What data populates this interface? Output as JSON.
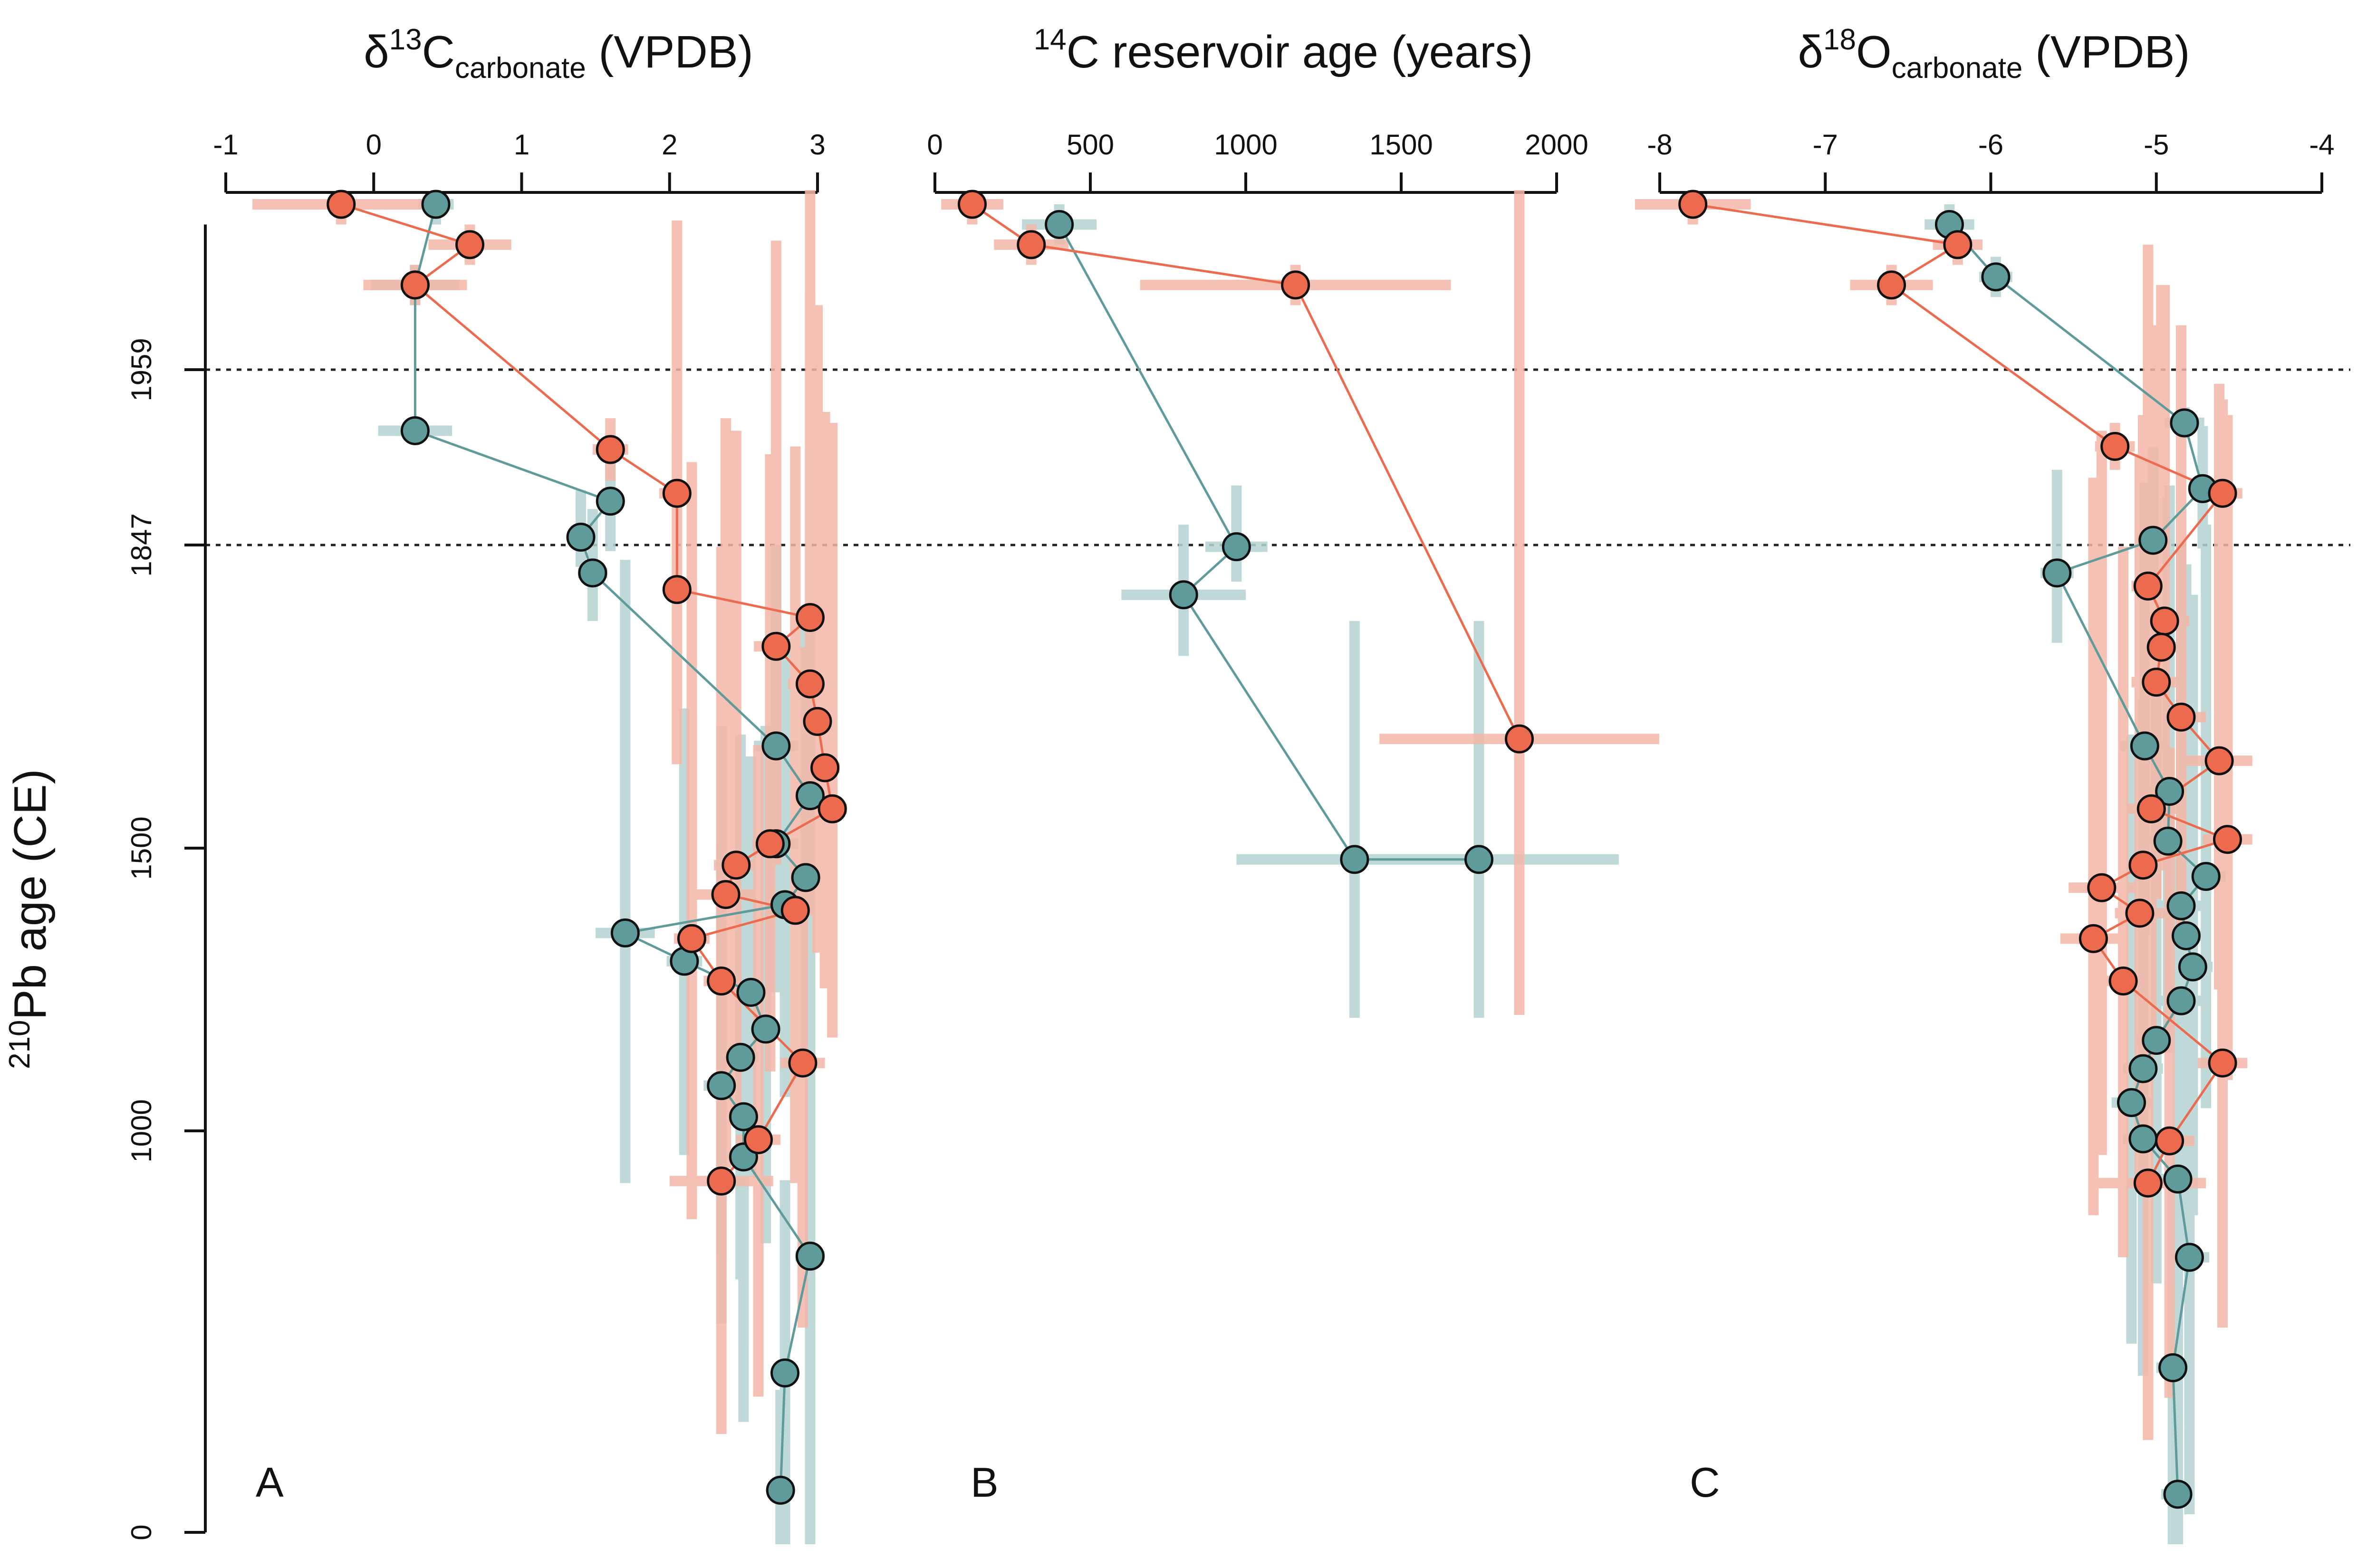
{
  "colors": {
    "teal": "#5f9b9b",
    "teal_bar": "#b5d3d3",
    "red": "#ec6b4e",
    "red_bar": "#f4b7a8",
    "stroke": "#111111"
  },
  "chart_data": {
    "type": "scatter",
    "ylabel_sup": "210",
    "ylabel_main": "Pb age (CE)",
    "y_ticks": [
      0,
      1000,
      1500,
      1847,
      1959
    ],
    "y_ref_lines": [
      1959,
      1847
    ],
    "panels": [
      {
        "letter": "A",
        "title_pre": "δ",
        "title_sup": "13",
        "title_main": "C",
        "title_sub": "carbonate",
        "title_post": " (VPDB)",
        "xlim": [
          -1,
          3
        ],
        "x_ticks": [
          -1,
          0,
          1,
          2,
          3
        ],
        "series": [
          {
            "color": "teal",
            "points": [
              {
                "y": 2000,
                "x": 0.42,
                "xerr": 0.12,
                "yerr": 5
              },
              {
                "y": 1980,
                "x": 0.28,
                "xerr": 0.3,
                "yerr": 5
              },
              {
                "y": 1920,
                "x": 0.28,
                "xerr": 0.25,
                "yerr": 8
              },
              {
                "y": 1875,
                "x": 1.6,
                "xerr": 0.08,
                "yerr": 35
              },
              {
                "y": 1852,
                "x": 1.4,
                "xerr": 0.08,
                "yerr": 30
              },
              {
                "y": 1815,
                "x": 1.48,
                "xerr": 0.1,
                "yerr": 55
              },
              {
                "y": 1617,
                "x": 2.72,
                "xerr": 0.15,
                "yerr": 230
              },
              {
                "y": 1560,
                "x": 2.95,
                "xerr": 0.1,
                "yerr": 210
              },
              {
                "y": 1505,
                "x": 2.72,
                "xerr": 0.15,
                "yerr": 260
              },
              {
                "y": 1448,
                "x": 2.92,
                "xerr": 0.1,
                "yerr": 310
              },
              {
                "y": 1400,
                "x": 2.78,
                "xerr": 0.12,
                "yerr": 340
              },
              {
                "y": 1350,
                "x": 1.7,
                "xerr": 0.2,
                "yerr": 480
              },
              {
                "y": 1300,
                "x": 2.1,
                "xerr": 0.12,
                "yerr": 360
              },
              {
                "y": 1245,
                "x": 2.55,
                "xerr": 0.12,
                "yerr": 360
              },
              {
                "y": 1180,
                "x": 2.65,
                "xerr": 0.1,
                "yerr": 460
              },
              {
                "y": 1130,
                "x": 2.48,
                "xerr": 0.12,
                "yerr": 500
              },
              {
                "y": 1080,
                "x": 2.35,
                "xerr": 0.12,
                "yerr": 560
              },
              {
                "y": 1025,
                "x": 2.5,
                "xerr": 0.1,
                "yerr": 560
              },
              {
                "y": 935,
                "x": 2.5,
                "xerr": 0.1,
                "yerr": 660
              },
              {
                "y": 688,
                "x": 2.95,
                "xerr": 0.1,
                "yerr": 720
              },
              {
                "y": 397,
                "x": 2.78,
                "xerr": 0.08,
                "yerr": 480
              },
              {
                "y": 105,
                "x": 2.75,
                "xerr": 0.08,
                "yerr": 250
              }
            ]
          },
          {
            "color": "red",
            "points": [
              {
                "y": 2000,
                "x": -0.22,
                "xerr": 0.6,
                "yerr": 5
              },
              {
                "y": 1990,
                "x": 0.65,
                "xerr": 0.28,
                "yerr": 5
              },
              {
                "y": 1980,
                "x": 0.28,
                "xerr": 0.35,
                "yerr": 5
              },
              {
                "y": 1908,
                "x": 1.6,
                "xerr": 0.12,
                "yerr": 20
              },
              {
                "y": 1880,
                "x": 2.05,
                "xerr": 0.12,
                "yerr": 40
              },
              {
                "y": 1796,
                "x": 2.05,
                "xerr": 0.05,
                "yerr": 200
              },
              {
                "y": 1764,
                "x": 2.95,
                "xerr": 0.1,
                "yerr": 240
              },
              {
                "y": 1731,
                "x": 2.72,
                "xerr": 0.15,
                "yerr": 260
              },
              {
                "y": 1688,
                "x": 2.95,
                "xerr": 0.15,
                "yerr": 290
              },
              {
                "y": 1645,
                "x": 3.0,
                "xerr": 0.1,
                "yerr": 330
              },
              {
                "y": 1592,
                "x": 3.05,
                "xerr": 0.1,
                "yerr": 340
              },
              {
                "y": 1545,
                "x": 3.1,
                "xerr": 0.1,
                "yerr": 380
              },
              {
                "y": 1505,
                "x": 2.68,
                "xerr": 0.12,
                "yerr": 400
              },
              {
                "y": 1470,
                "x": 2.45,
                "xerr": 0.15,
                "yerr": 450
              },
              {
                "y": 1418,
                "x": 2.38,
                "xerr": 0.2,
                "yerr": 510
              },
              {
                "y": 1390,
                "x": 2.85,
                "xerr": 0.12,
                "yerr": 520
              },
              {
                "y": 1340,
                "x": 2.15,
                "xerr": 0.12,
                "yerr": 560
              },
              {
                "y": 1265,
                "x": 2.35,
                "xerr": 0.12,
                "yerr": 580
              },
              {
                "y": 1120,
                "x": 2.9,
                "xerr": 0.15,
                "yerr": 610
              },
              {
                "y": 978,
                "x": 2.6,
                "xerr": 0.15,
                "yerr": 640
              },
              {
                "y": 875,
                "x": 2.35,
                "xerr": 0.35,
                "yerr": 630
              }
            ]
          }
        ]
      },
      {
        "letter": "B",
        "title_pre": "",
        "title_sup": "14",
        "title_main": "C reservoir age (years)",
        "title_sub": "",
        "title_post": "",
        "xlim": [
          0,
          2000
        ],
        "x_ticks": [
          0,
          500,
          1000,
          1500,
          2000
        ],
        "series": [
          {
            "color": "teal",
            "points": [
              {
                "y": 1995,
                "x": 400,
                "xerr": 120,
                "yerr": 5
              },
              {
                "y": 1845,
                "x": 970,
                "xerr": 100,
                "yerr": 40
              },
              {
                "y": 1790,
                "x": 800,
                "xerr": 200,
                "yerr": 70
              },
              {
                "y": 1480,
                "x": 1350,
                "xerr": 380,
                "yerr": 280
              },
              {
                "y": 1480,
                "x": 1750,
                "xerr": 450,
                "yerr": 280
              }
            ]
          },
          {
            "color": "red",
            "points": [
              {
                "y": 2000,
                "x": 120,
                "xerr": 100,
                "yerr": 5
              },
              {
                "y": 1990,
                "x": 310,
                "xerr": 120,
                "yerr": 5
              },
              {
                "y": 1980,
                "x": 1160,
                "xerr": 500,
                "yerr": 5
              },
              {
                "y": 1625,
                "x": 1880,
                "xerr": 450,
                "yerr": 420
              }
            ]
          }
        ]
      },
      {
        "letter": "C",
        "title_pre": "δ",
        "title_sup": "18",
        "title_main": "O",
        "title_sub": "carbonate",
        "title_post": " (VPDB)",
        "xlim": [
          -8,
          -4
        ],
        "x_ticks": [
          -8,
          -7,
          -6,
          -5,
          -4
        ],
        "series": [
          {
            "color": "teal",
            "points": [
              {
                "y": 1995,
                "x": -6.25,
                "xerr": 0.15,
                "yerr": 5
              },
              {
                "y": 1982,
                "x": -5.97,
                "xerr": 0.1,
                "yerr": 5
              },
              {
                "y": 1925,
                "x": -4.83,
                "xerr": 0.12,
                "yerr": 10
              },
              {
                "y": 1883,
                "x": -4.72,
                "xerr": 0.08,
                "yerr": 40
              },
              {
                "y": 1850,
                "x": -5.02,
                "xerr": 0.1,
                "yerr": 60
              },
              {
                "y": 1815,
                "x": -5.6,
                "xerr": 0.1,
                "yerr": 80
              },
              {
                "y": 1617,
                "x": -5.07,
                "xerr": 0.15,
                "yerr": 270
              },
              {
                "y": 1565,
                "x": -4.92,
                "xerr": 0.12,
                "yerr": 320
              },
              {
                "y": 1508,
                "x": -4.93,
                "xerr": 0.12,
                "yerr": 370
              },
              {
                "y": 1450,
                "x": -4.7,
                "xerr": 0.12,
                "yerr": 410
              },
              {
                "y": 1398,
                "x": -4.85,
                "xerr": 0.12,
                "yerr": 450
              },
              {
                "y": 1345,
                "x": -4.82,
                "xerr": 0.12,
                "yerr": 480
              },
              {
                "y": 1290,
                "x": -4.78,
                "xerr": 0.12,
                "yerr": 500
              },
              {
                "y": 1230,
                "x": -4.85,
                "xerr": 0.12,
                "yerr": 520
              },
              {
                "y": 1160,
                "x": -5.0,
                "xerr": 0.12,
                "yerr": 540
              },
              {
                "y": 1110,
                "x": -5.08,
                "xerr": 0.12,
                "yerr": 560
              },
              {
                "y": 1050,
                "x": -5.15,
                "xerr": 0.12,
                "yerr": 580
              },
              {
                "y": 980,
                "x": -5.08,
                "xerr": 0.12,
                "yerr": 590
              },
              {
                "y": 880,
                "x": -4.87,
                "xerr": 0.12,
                "yerr": 620
              },
              {
                "y": 685,
                "x": -4.8,
                "xerr": 0.12,
                "yerr": 640
              },
              {
                "y": 410,
                "x": -4.9,
                "xerr": 0.1,
                "yerr": 450
              },
              {
                "y": 95,
                "x": -4.87,
                "xerr": 0.1,
                "yerr": 200
              }
            ]
          },
          {
            "color": "red",
            "points": [
              {
                "y": 2000,
                "x": -7.8,
                "xerr": 0.35,
                "yerr": 5
              },
              {
                "y": 1990,
                "x": -6.2,
                "xerr": 0.15,
                "yerr": 5
              },
              {
                "y": 1980,
                "x": -6.6,
                "xerr": 0.25,
                "yerr": 5
              },
              {
                "y": 1910,
                "x": -5.25,
                "xerr": 0.12,
                "yerr": 15
              },
              {
                "y": 1880,
                "x": -4.6,
                "xerr": 0.12,
                "yerr": 60
              },
              {
                "y": 1800,
                "x": -5.05,
                "xerr": 0.1,
                "yerr": 190
              },
              {
                "y": 1760,
                "x": -4.95,
                "xerr": 0.15,
                "yerr": 220
              },
              {
                "y": 1730,
                "x": -4.97,
                "xerr": 0.15,
                "yerr": 250
              },
              {
                "y": 1690,
                "x": -5.0,
                "xerr": 0.15,
                "yerr": 280
              },
              {
                "y": 1650,
                "x": -4.85,
                "xerr": 0.15,
                "yerr": 320
              },
              {
                "y": 1600,
                "x": -4.62,
                "xerr": 0.2,
                "yerr": 350
              },
              {
                "y": 1545,
                "x": -5.03,
                "xerr": 0.15,
                "yerr": 380
              },
              {
                "y": 1510,
                "x": -4.57,
                "xerr": 0.15,
                "yerr": 420
              },
              {
                "y": 1470,
                "x": -5.08,
                "xerr": 0.15,
                "yerr": 460
              },
              {
                "y": 1430,
                "x": -5.33,
                "xerr": 0.2,
                "yerr": 490
              },
              {
                "y": 1385,
                "x": -5.1,
                "xerr": 0.15,
                "yerr": 520
              },
              {
                "y": 1340,
                "x": -5.38,
                "xerr": 0.2,
                "yerr": 550
              },
              {
                "y": 1265,
                "x": -5.2,
                "xerr": 0.15,
                "yerr": 580
              },
              {
                "y": 1120,
                "x": -4.6,
                "xerr": 0.15,
                "yerr": 610
              },
              {
                "y": 975,
                "x": -4.92,
                "xerr": 0.15,
                "yerr": 640
              },
              {
                "y": 870,
                "x": -5.05,
                "xerr": 0.35,
                "yerr": 640
              }
            ]
          }
        ]
      }
    ]
  }
}
